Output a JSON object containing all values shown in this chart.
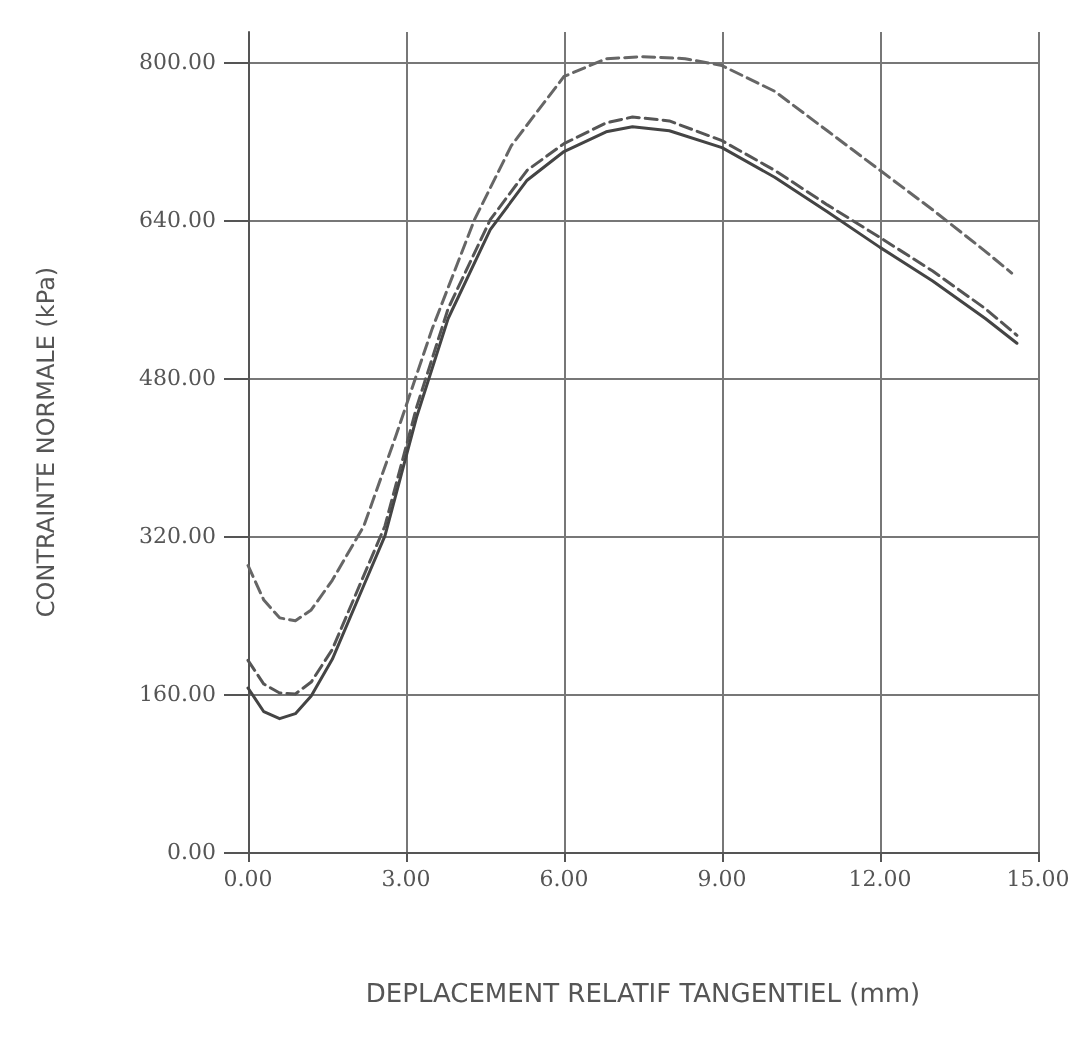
{
  "chart_data": {
    "type": "line",
    "xlabel": "DEPLACEMENT RELATIF TANGENTIEL (mm)",
    "ylabel": "CONTRAINTE NORMALE (kPa)",
    "xlim": [
      0,
      15
    ],
    "ylim": [
      0,
      830
    ],
    "xticks": [
      {
        "value": 0,
        "label": "0.00"
      },
      {
        "value": 3,
        "label": "3.00"
      },
      {
        "value": 6,
        "label": "6.00"
      },
      {
        "value": 9,
        "label": "9.00"
      },
      {
        "value": 12,
        "label": "12.00"
      },
      {
        "value": 15,
        "label": "15.00"
      }
    ],
    "yticks": [
      {
        "value": 0,
        "label": "0.00"
      },
      {
        "value": 160,
        "label": "160.00"
      },
      {
        "value": 320,
        "label": "320.00"
      },
      {
        "value": 480,
        "label": "480.00"
      },
      {
        "value": 640,
        "label": "640.00"
      },
      {
        "value": 800,
        "label": "800.00"
      }
    ],
    "grid": true,
    "marker": "none",
    "series": [
      {
        "color": "#666666",
        "line_style": "dashed",
        "x": [
          0,
          0.3,
          0.6,
          0.9,
          1.2,
          1.6,
          2.2,
          2.8,
          3.5,
          4.3,
          5,
          6,
          6.8,
          7.5,
          8.3,
          9,
          10,
          11,
          12,
          13,
          14,
          14.5
        ],
        "values": [
          290,
          255,
          237,
          234,
          245,
          275,
          330,
          420,
          530,
          640,
          715,
          785,
          803,
          805,
          803,
          796,
          770,
          730,
          690,
          650,
          608,
          586
        ]
      },
      {
        "color": "#555555",
        "line_style": "dashed",
        "x": [
          0,
          0.3,
          0.6,
          0.9,
          1.2,
          1.6,
          2.2,
          2.6,
          3.2,
          3.8,
          4.6,
          5.3,
          6,
          6.8,
          7.3,
          8,
          9,
          10,
          11,
          12,
          13,
          14,
          14.6
        ],
        "values": [
          194,
          170,
          161,
          160,
          172,
          205,
          280,
          330,
          450,
          550,
          640,
          690,
          717,
          738,
          744,
          740,
          720,
          690,
          655,
          622,
          588,
          550,
          523
        ]
      },
      {
        "color": "#444444",
        "line_style": "solid",
        "x": [
          0,
          0.3,
          0.6,
          0.9,
          1.2,
          1.6,
          2.2,
          2.6,
          3.2,
          3.8,
          4.6,
          5.3,
          6,
          6.8,
          7.3,
          8,
          9,
          10,
          11,
          12,
          13,
          14,
          14.6
        ],
        "values": [
          166,
          142,
          135,
          140,
          158,
          195,
          270,
          320,
          440,
          540,
          630,
          680,
          709,
          729,
          734,
          730,
          713,
          683,
          648,
          612,
          578,
          540,
          515
        ]
      }
    ]
  }
}
